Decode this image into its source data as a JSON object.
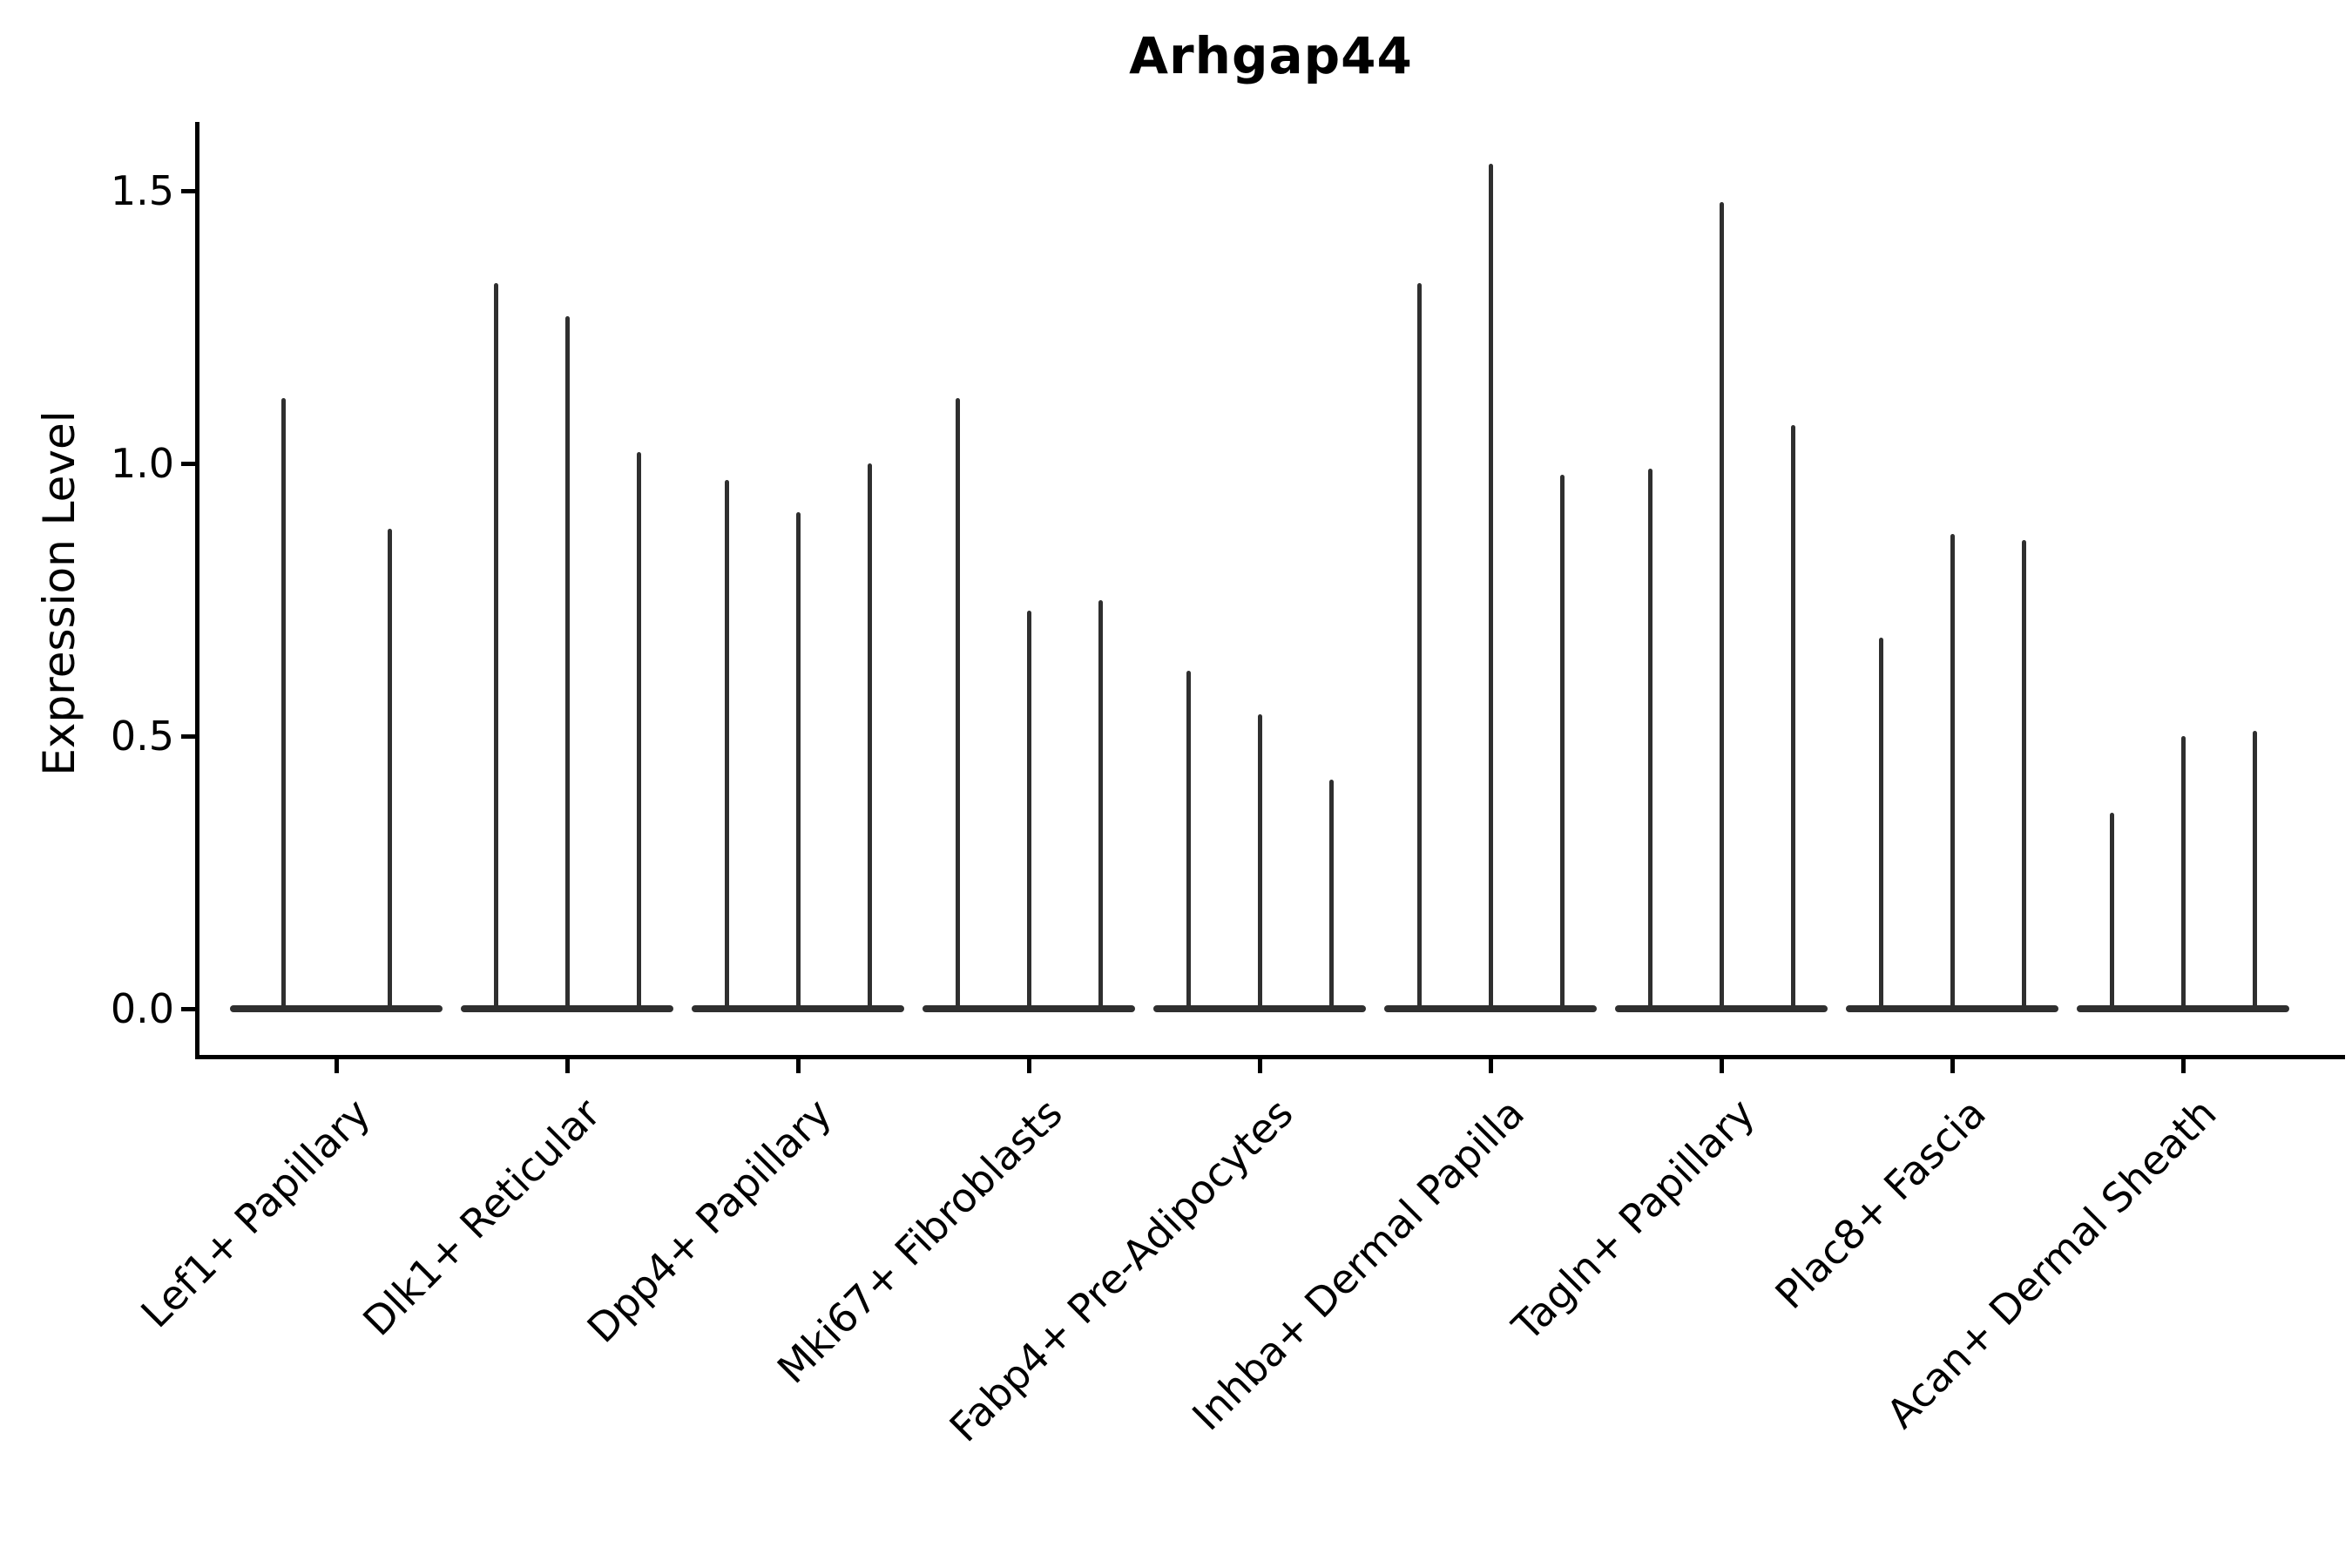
{
  "chart_data": {
    "type": "violin",
    "title": "Arhgap44",
    "xlabel": "",
    "ylabel": "Expression Level",
    "ytick_labels": [
      "0.0",
      "0.5",
      "1.0",
      "1.5"
    ],
    "ytick_values": [
      0.0,
      0.5,
      1.0,
      1.5
    ],
    "ylim": [
      -0.09,
      1.62
    ],
    "grid": false,
    "legend": false,
    "style_note": "Seurat-style stacked violin plot; each violin is a near-zero density with a thin spike to its maximum expression value",
    "categories": [
      "Lef1+ Papillary",
      "Dlk1+ Reticular",
      "Dpp4+ Papillary",
      "Mki67+ Fibroblasts",
      "Fabp4+ Pre-Adipocytes",
      "Inhba+ Dermal Papilla",
      "Tagln+ Papillary",
      "Plac8+ Fascia",
      "Acan+ Dermal Sheath"
    ],
    "groups": [
      {
        "label": "Lef1+ Papillary",
        "spike_max_values": [
          1.12,
          0.88
        ]
      },
      {
        "label": "Dlk1+ Reticular",
        "spike_max_values": [
          1.33,
          1.27,
          1.02
        ]
      },
      {
        "label": "Dpp4+ Papillary",
        "spike_max_values": [
          0.97,
          0.91,
          1.0
        ]
      },
      {
        "label": "Mki67+ Fibroblasts",
        "spike_max_values": [
          1.12,
          0.73,
          0.75
        ]
      },
      {
        "label": "Fabp4+ Pre-Adipocytes",
        "spike_max_values": [
          0.62,
          0.54,
          0.42
        ]
      },
      {
        "label": "Inhba+ Dermal Papilla",
        "spike_max_values": [
          1.33,
          1.55,
          0.98
        ]
      },
      {
        "label": "Tagln+ Papillary",
        "spike_max_values": [
          0.99,
          1.48,
          1.07
        ]
      },
      {
        "label": "Plac8+ Fascia",
        "spike_max_values": [
          0.68,
          0.87,
          0.86
        ]
      },
      {
        "label": "Acan+ Dermal Sheath",
        "spike_max_values": [
          0.36,
          0.5,
          0.51
        ]
      }
    ],
    "colors": {
      "violin_line": "#2f2f2f",
      "axis": "#000000",
      "background": "#ffffff"
    }
  }
}
